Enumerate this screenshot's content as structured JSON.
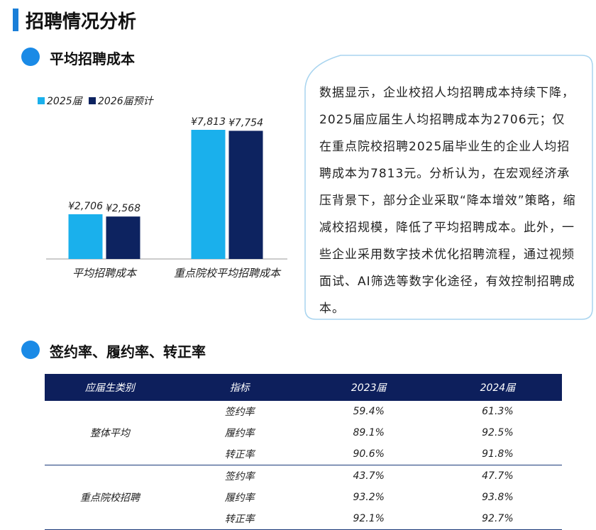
{
  "header": {
    "title": "招聘情况分析"
  },
  "section1": {
    "title": "平均招聘成本"
  },
  "chart_data": {
    "type": "bar",
    "categories": [
      "平均招聘成本",
      "重点院校平均招聘成本"
    ],
    "series": [
      {
        "name": "2025届",
        "color": "#1ab0ec",
        "values": [
          2706,
          7813
        ],
        "value_labels": [
          "¥2,706",
          "¥7,813"
        ]
      },
      {
        "name": "2026届预计",
        "color": "#0d2360",
        "values": [
          2568,
          7754
        ],
        "value_labels": [
          "¥2,568",
          "¥7,754"
        ]
      }
    ]
  },
  "note": {
    "text": "数据显示，企业校招人均招聘成本持续下降，2025届应届生人均招聘成本为2706元；仅在重点院校招聘2025届毕业生的企业人均招聘成本为7813元。分析认为，在宏观经济承压背景下，部分企业采取“降本增效”策略，缩减校招规模，降低了平均招聘成本。此外，一些企业采用数字技术优化招聘流程，通过视频面试、AI筛选等数字化途径，有效控制招聘成本。"
  },
  "section2": {
    "title": "签约率、履约率、转正率"
  },
  "table": {
    "header": [
      "应届生类别",
      "指标",
      "2023届",
      "2024届"
    ],
    "groups": [
      {
        "name": "整体平均",
        "rows": [
          [
            "签约率",
            "59.4%",
            "61.3%"
          ],
          [
            "履约率",
            "89.1%",
            "92.5%"
          ],
          [
            "转正率",
            "90.6%",
            "91.8%"
          ]
        ]
      },
      {
        "name": "重点院校招聘",
        "rows": [
          [
            "签约率",
            "43.7%",
            "47.7%"
          ],
          [
            "履约率",
            "93.2%",
            "93.8%"
          ],
          [
            "转正率",
            "92.1%",
            "92.7%"
          ]
        ]
      }
    ]
  }
}
